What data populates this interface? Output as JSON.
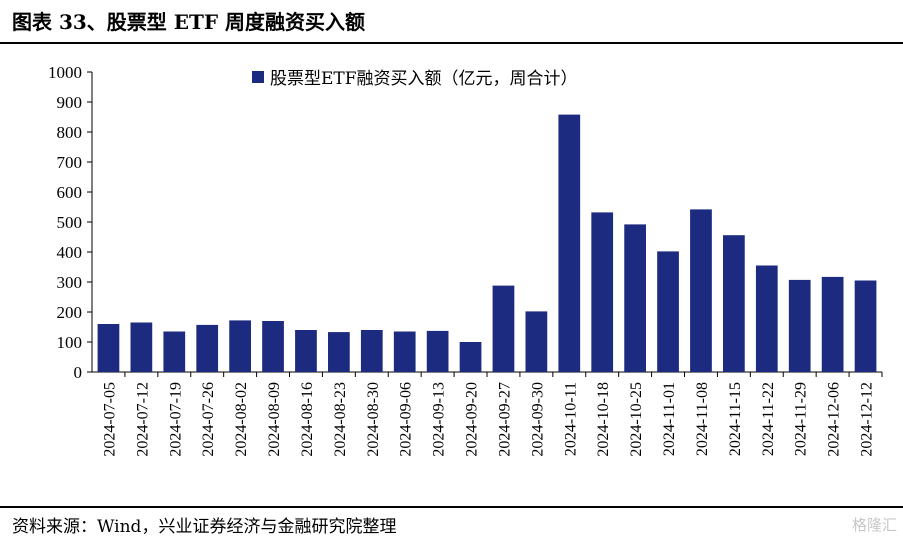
{
  "header": {
    "title": "图表 33、股票型 ETF 周度融资买入额"
  },
  "footer": {
    "source": "资料来源：Wind，兴业证券经济与金融研究院整理",
    "watermark": "格隆汇"
  },
  "chart_data": {
    "type": "bar",
    "categories": [
      "2024-07-05",
      "2024-07-12",
      "2024-07-19",
      "2024-07-26",
      "2024-08-02",
      "2024-08-09",
      "2024-08-16",
      "2024-08-23",
      "2024-08-30",
      "2024-09-06",
      "2024-09-13",
      "2024-09-20",
      "2024-09-27",
      "2024-09-30",
      "2024-10-11",
      "2024-10-18",
      "2024-10-25",
      "2024-11-01",
      "2024-11-08",
      "2024-11-15",
      "2024-11-22",
      "2024-11-29",
      "2024-12-06",
      "2024-12-12"
    ],
    "series": [
      {
        "name": "股票型ETF融资买入额（亿元，周合计）",
        "values": [
          160,
          165,
          135,
          157,
          172,
          170,
          140,
          133,
          140,
          135,
          137,
          100,
          288,
          202,
          858,
          532,
          492,
          402,
          542,
          456,
          355,
          307,
          317,
          305
        ]
      }
    ],
    "ylim": [
      0,
      1000
    ],
    "yticks": [
      0,
      100,
      200,
      300,
      400,
      500,
      600,
      700,
      800,
      900,
      1000
    ],
    "legend": "top-center",
    "grid": false,
    "bar_color": "#1c2a80"
  }
}
